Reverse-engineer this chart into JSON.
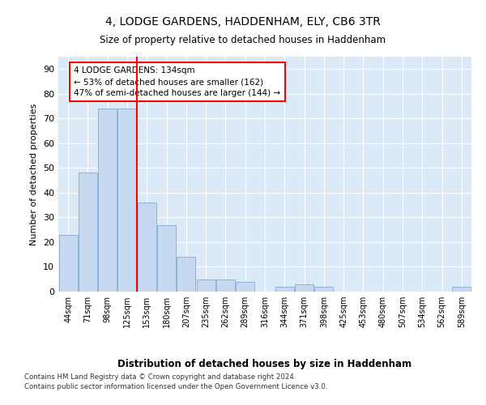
{
  "title_line1": "4, LODGE GARDENS, HADDENHAM, ELY, CB6 3TR",
  "title_line2": "Size of property relative to detached houses in Haddenham",
  "xlabel": "Distribution of detached houses by size in Haddenham",
  "ylabel": "Number of detached properties",
  "categories": [
    "44sqm",
    "71sqm",
    "98sqm",
    "125sqm",
    "153sqm",
    "180sqm",
    "207sqm",
    "235sqm",
    "262sqm",
    "289sqm",
    "316sqm",
    "344sqm",
    "371sqm",
    "398sqm",
    "425sqm",
    "453sqm",
    "480sqm",
    "507sqm",
    "534sqm",
    "562sqm",
    "589sqm"
  ],
  "values": [
    23,
    48,
    74,
    74,
    36,
    27,
    14,
    5,
    5,
    4,
    0,
    2,
    3,
    2,
    0,
    0,
    0,
    0,
    0,
    0,
    2
  ],
  "bar_color": "#c6d9f0",
  "bar_edge_color": "#8ab4d9",
  "red_line_x": 3.5,
  "annotation_text": "4 LODGE GARDENS: 134sqm\n← 53% of detached houses are smaller (162)\n47% of semi-detached houses are larger (144) →",
  "ylim": [
    0,
    95
  ],
  "yticks": [
    0,
    10,
    20,
    30,
    40,
    50,
    60,
    70,
    80,
    90
  ],
  "footer_line1": "Contains HM Land Registry data © Crown copyright and database right 2024.",
  "footer_line2": "Contains public sector information licensed under the Open Government Licence v3.0.",
  "plot_bg_color": "#dce9f7"
}
